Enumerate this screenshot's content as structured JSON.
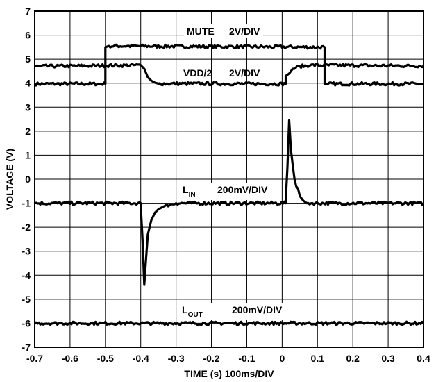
{
  "chart_data": {
    "type": "line",
    "title": "",
    "xlabel": "TIME (s) 100ms/DIV",
    "ylabel": "VOLTAGE (V)",
    "xlim": [
      -0.7,
      0.4
    ],
    "ylim": [
      -7,
      7
    ],
    "x_ticks": [
      "-0.7",
      "-0.6",
      "-0.5",
      "-0.4",
      "-0.3",
      "-0.2",
      "-0.1",
      "0",
      "0.1",
      "0.2",
      "0.3",
      "0.4"
    ],
    "y_ticks": [
      "-7",
      "-6",
      "-5",
      "-4",
      "-3",
      "-2",
      "-1",
      "0",
      "1",
      "2",
      "3",
      "4",
      "5",
      "6",
      "7"
    ],
    "grid": true,
    "legend": "none",
    "series": [
      {
        "name": "MUTE",
        "scale": "2V/DIV",
        "x": [
          -0.7,
          -0.5,
          -0.5,
          -0.49,
          0.12,
          0.12,
          0.13,
          0.4
        ],
        "y": [
          3.97,
          3.97,
          5.5,
          5.55,
          5.5,
          3.97,
          3.97,
          3.97
        ]
      },
      {
        "name": "VDD/2",
        "scale": "2V/DIV",
        "x": [
          -0.7,
          -0.4,
          -0.39,
          -0.38,
          -0.37,
          -0.36,
          -0.35,
          0.01,
          0.01,
          0.02,
          0.03,
          0.05,
          0.08,
          0.4
        ],
        "y": [
          4.7,
          4.75,
          4.6,
          4.25,
          4.1,
          4.02,
          3.98,
          3.97,
          4.3,
          4.4,
          4.6,
          4.7,
          4.75,
          4.72
        ]
      },
      {
        "name": "L_IN",
        "scale": "200mV/DIV",
        "x": [
          -0.7,
          -0.4,
          -0.4,
          -0.395,
          -0.39,
          -0.385,
          -0.38,
          -0.37,
          -0.36,
          -0.35,
          -0.33,
          -0.3,
          0.01,
          0.01,
          0.015,
          0.02,
          0.025,
          0.03,
          0.035,
          0.04,
          0.045,
          0.05,
          0.055,
          0.06,
          0.07,
          0.4
        ],
        "y": [
          -1.0,
          -1.0,
          -1.1,
          -2.5,
          -4.4,
          -3.3,
          -2.3,
          -1.7,
          -1.4,
          -1.25,
          -1.1,
          -1.0,
          -1.0,
          -0.9,
          0.5,
          2.45,
          1.2,
          0.6,
          0.0,
          -0.3,
          -0.4,
          -0.7,
          -0.8,
          -0.9,
          -1.0,
          -1.0
        ]
      },
      {
        "name": "L_OUT",
        "scale": "200mV/DIV",
        "x": [
          -0.7,
          0.4
        ],
        "y": [
          -6.0,
          -6.0
        ]
      }
    ],
    "annotations": [
      {
        "main": "MUTE",
        "sub": "",
        "scale": "2V/DIV"
      },
      {
        "main": "VDD/2",
        "sub": "",
        "scale": "2V/DIV"
      },
      {
        "main": "L",
        "sub": "IN",
        "scale": "200mV/DIV"
      },
      {
        "main": "L",
        "sub": "OUT",
        "scale": "200mV/DIV"
      }
    ]
  }
}
